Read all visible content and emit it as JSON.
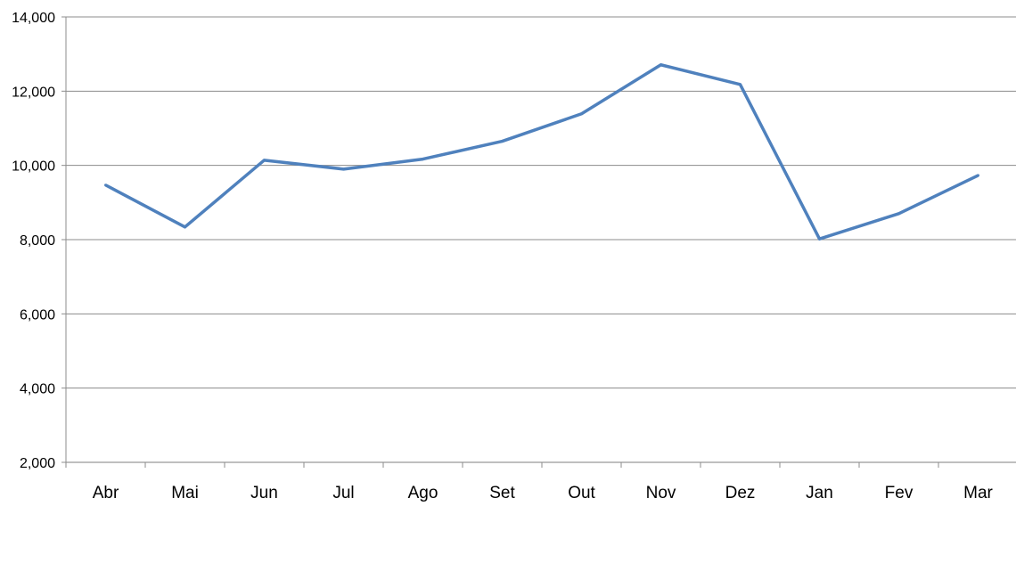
{
  "chart_data": {
    "type": "line",
    "title": "",
    "xlabel": "",
    "ylabel": "",
    "categories": [
      "Abr",
      "Mai",
      "Jun",
      "Jul",
      "Ago",
      "Set",
      "Out",
      "Nov",
      "Dez",
      "Jan",
      "Fev",
      "Mar"
    ],
    "series": [
      {
        "values": [
          9470,
          8340,
          10140,
          9900,
          10170,
          10650,
          11390,
          12710,
          12180,
          8020,
          8700,
          9730
        ],
        "color": "#4f81bd"
      }
    ],
    "ylim": [
      2000,
      14000
    ],
    "yticks": [
      2000,
      4000,
      6000,
      8000,
      10000,
      12000,
      14000
    ],
    "ytick_labels": [
      "2,000",
      "4,000",
      "6,000",
      "8,000",
      "10,000",
      "12,000",
      "14,000"
    ],
    "grid": "horizontal",
    "legend": "none"
  }
}
